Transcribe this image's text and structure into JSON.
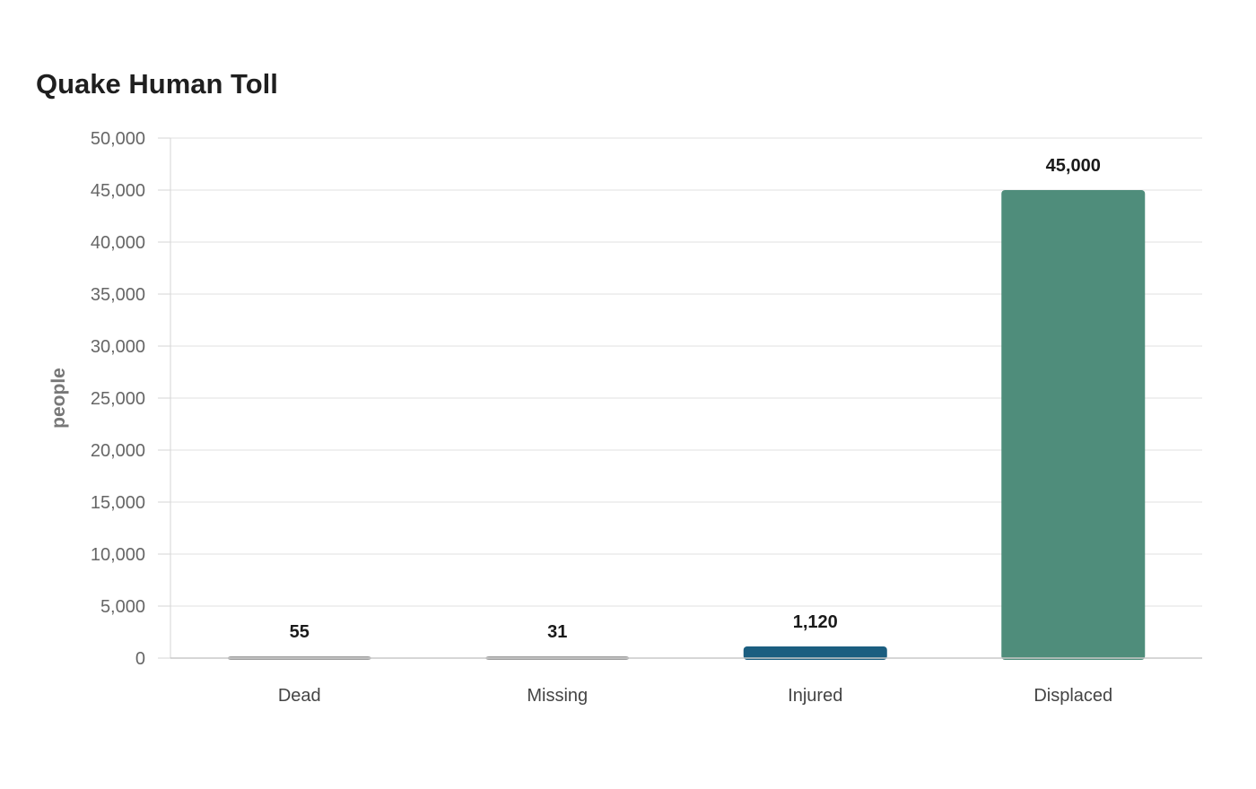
{
  "chart_data": {
    "type": "bar",
    "title": "Quake Human Toll",
    "xlabel": "",
    "ylabel": "people",
    "ylim": [
      0,
      50000
    ],
    "yticks": [
      0,
      5000,
      10000,
      15000,
      20000,
      25000,
      30000,
      35000,
      40000,
      45000,
      50000
    ],
    "categories": [
      "Dead",
      "Missing",
      "Injured",
      "Displaced"
    ],
    "values": [
      55,
      31,
      1120,
      45000
    ],
    "value_labels": [
      "55",
      "31",
      "1,120",
      "45,000"
    ],
    "colors": [
      "#9e9e9e",
      "#9e9e9e",
      "#1b5e80",
      "#4f8d7b"
    ],
    "grid": true,
    "legend": "none"
  }
}
